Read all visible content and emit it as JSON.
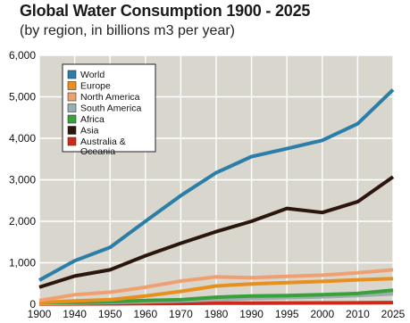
{
  "chart_data": {
    "type": "line",
    "title": "Global Water Consumption 1900 - 2025",
    "subtitle": "(by region, in billions m3 per year)",
    "xlabel": "",
    "ylabel": "",
    "x": [
      1900,
      1940,
      1950,
      1960,
      1970,
      1980,
      1990,
      1995,
      2000,
      2010,
      2025
    ],
    "ylim": [
      0,
      6000
    ],
    "y_ticks": [
      "0",
      "1,000",
      "2,000",
      "3,000",
      "4,000",
      "5,000",
      "6,000"
    ],
    "x_ticks": [
      "1900",
      "1940",
      "1950",
      "1960",
      "1970",
      "1980",
      "1990",
      "1995",
      "2000",
      "2010",
      "2025"
    ],
    "grid": true,
    "legend_position": "top-left",
    "series": [
      {
        "name": "World",
        "color": "#2a7ea8",
        "values": [
          580,
          1050,
          1370,
          2000,
          2620,
          3170,
          3560,
          3750,
          3950,
          4350,
          5170
        ]
      },
      {
        "name": "Europe",
        "color": "#e8901e",
        "values": [
          40,
          80,
          110,
          200,
          310,
          440,
          490,
          520,
          550,
          590,
          620
        ]
      },
      {
        "name": "North America",
        "color": "#f0a070",
        "values": [
          90,
          230,
          290,
          410,
          560,
          660,
          640,
          670,
          700,
          760,
          830
        ]
      },
      {
        "name": "South America",
        "color": "#9aaeb0",
        "values": [
          15,
          25,
          40,
          60,
          80,
          110,
          140,
          160,
          180,
          210,
          250
        ]
      },
      {
        "name": "Africa",
        "color": "#3aa03a",
        "values": [
          40,
          50,
          60,
          90,
          110,
          170,
          200,
          210,
          230,
          260,
          340
        ]
      },
      {
        "name": "Asia",
        "color": "#2b160e",
        "values": [
          410,
          680,
          830,
          1170,
          1470,
          1750,
          2000,
          2310,
          2210,
          2470,
          3070
        ]
      },
      {
        "name": "Australia & Oceania",
        "color": "#d02818",
        "values": [
          5,
          8,
          10,
          15,
          20,
          25,
          28,
          30,
          32,
          35,
          40
        ]
      }
    ]
  }
}
